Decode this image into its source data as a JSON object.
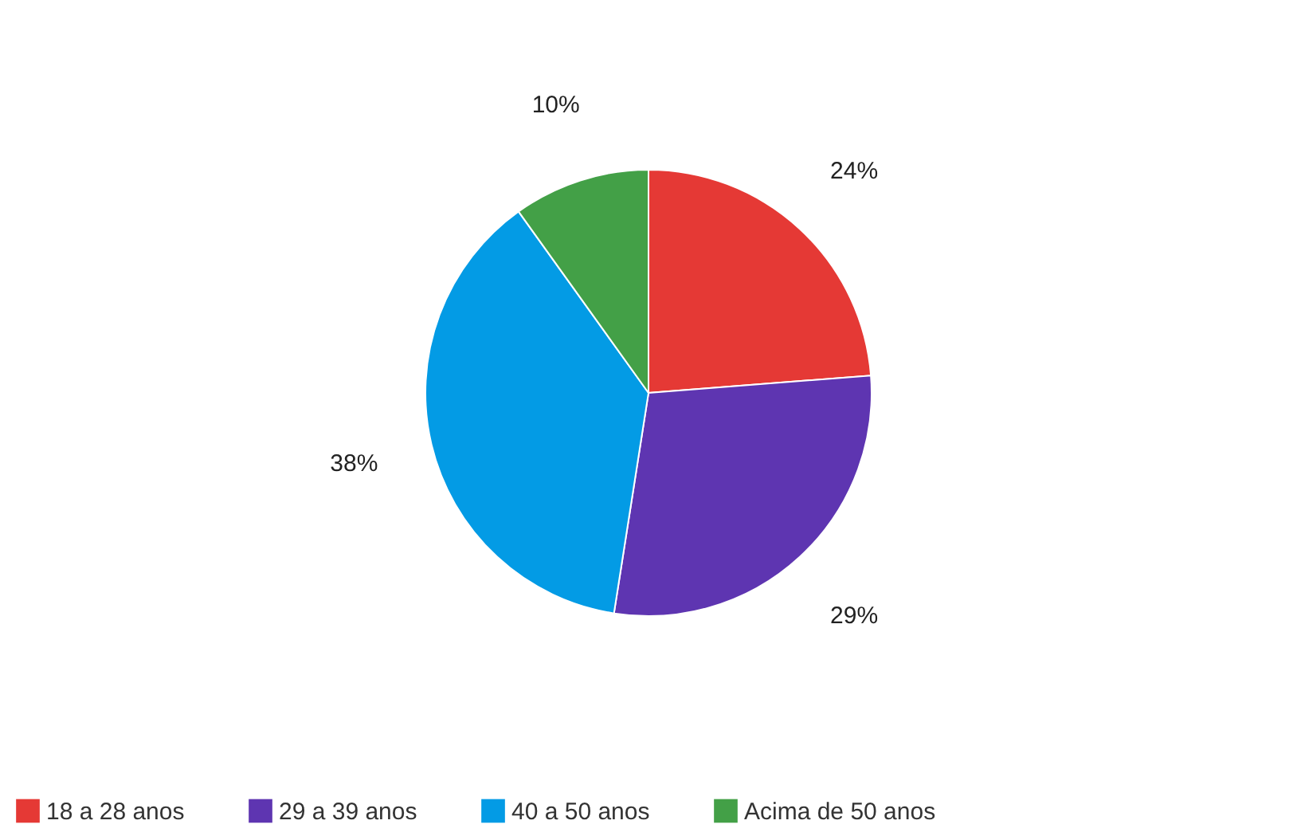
{
  "chart_data": {
    "type": "pie",
    "categories": [
      "18 a 28 anos",
      "29 a 39 anos",
      "40 a 50 anos",
      "Acima de 50 anos"
    ],
    "values": [
      24,
      29,
      38,
      10
    ],
    "colors": [
      "#e53935",
      "#5e35b1",
      "#039be5",
      "#43a047"
    ],
    "value_labels": [
      "24%",
      "29%",
      "38%",
      "10%"
    ],
    "legend": "bottom"
  }
}
